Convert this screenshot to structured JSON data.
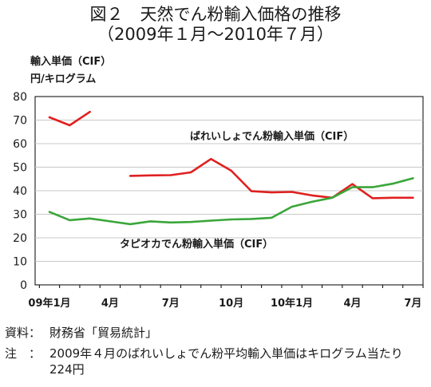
{
  "title": {
    "line1": "図２　天然でん粉輸入価格の推移",
    "line2": "（2009年１月～2010年７月）"
  },
  "y_axis_label": {
    "line1": "輸入単価（CIF）",
    "line2": "円/キログラム"
  },
  "footer": {
    "source_label": "資料：",
    "source_text": "財務省「貿易統計」",
    "note_label": "注　：",
    "note_text": "2009年４月のばれいしょでん粉平均輸入単価はキログラム当たり224円"
  },
  "chart_data": {
    "type": "line",
    "ylim": [
      0,
      80
    ],
    "yticks": [
      0,
      10,
      20,
      30,
      40,
      50,
      60,
      70,
      80
    ],
    "x_count": 19,
    "x_ticks": [
      {
        "index": 0,
        "label": "09年1月"
      },
      {
        "index": 3,
        "label": "4月"
      },
      {
        "index": 6,
        "label": "7月"
      },
      {
        "index": 9,
        "label": "10月"
      },
      {
        "index": 12,
        "label": "10年1月"
      },
      {
        "index": 15,
        "label": "4月"
      },
      {
        "index": 18,
        "label": "7月"
      }
    ],
    "series": [
      {
        "name": "ばれいしょでん粉輸入単価（CIF）",
        "color": "#e02020",
        "values": [
          71.2,
          67.8,
          73.5,
          null,
          46.3,
          46.5,
          46.6,
          47.8,
          53.5,
          48.5,
          39.8,
          39.3,
          39.5,
          38.0,
          37.0,
          42.8,
          36.8,
          37.0,
          37.0
        ]
      },
      {
        "name": "タピオカでん粉輸入単価（CIF）",
        "color": "#3aa63a",
        "values": [
          31.0,
          27.5,
          28.2,
          27.0,
          25.8,
          27.0,
          26.5,
          26.7,
          27.3,
          27.8,
          28.0,
          28.5,
          33.2,
          35.3,
          37.0,
          41.5,
          41.5,
          43.0,
          45.3
        ]
      }
    ]
  }
}
